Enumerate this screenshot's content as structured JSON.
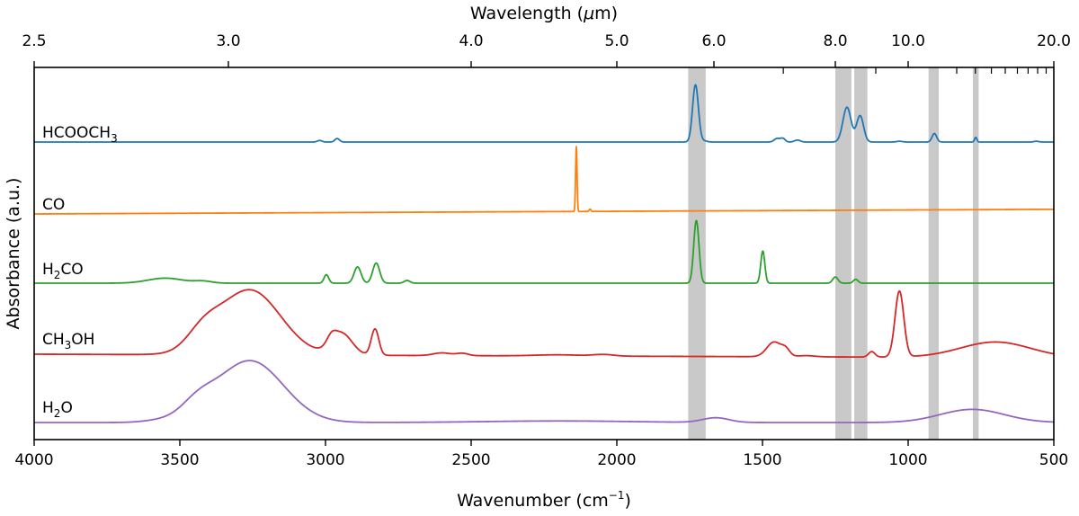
{
  "chart_data": {
    "type": "line",
    "xlabel": "Wavenumber (cm",
    "xlabel_sup": "−1",
    "xlabel_end": ")",
    "x2label": "Wavelength (",
    "x2label_mu": "μ",
    "x2label_end": "m)",
    "ylabel": "Absorbance (a.u.)",
    "xlim": [
      4000,
      500
    ],
    "xticks": [
      "4000",
      "3500",
      "3000",
      "2500",
      "2000",
      "1500",
      "1000",
      "500"
    ],
    "top_ticks": [
      {
        "um": 2.5,
        "label": "2.5"
      },
      {
        "um": 3.0,
        "label": "3.0"
      },
      {
        "um": 4.0,
        "label": "4.0"
      },
      {
        "um": 5.0,
        "label": "5.0"
      },
      {
        "um": 6.0,
        "label": "6.0"
      },
      {
        "um": 8.0,
        "label": "8.0"
      },
      {
        "um": 10.0,
        "label": "10.0"
      },
      {
        "um": 20.0,
        "label": "20.0"
      }
    ],
    "top_minor_ticks_um": [
      7,
      9,
      12,
      13,
      14,
      15,
      16,
      17,
      18,
      19
    ],
    "shaded_bands_cm": [
      [
        1755,
        1695
      ],
      [
        1250,
        1195
      ],
      [
        1185,
        1140
      ],
      [
        930,
        895
      ],
      [
        778,
        758
      ]
    ],
    "series": [
      {
        "name": "HCOOCH3",
        "label_main": "HCOOCH",
        "label_sub": "3",
        "label_tail": "",
        "color": "#1f77b4",
        "baseline": 0.0,
        "tilt": 0.0,
        "peaks": [
          [
            3020,
            0.4,
            8
          ],
          [
            2960,
            0.9,
            8
          ],
          [
            1730,
            14.8,
            10
          ],
          [
            1700,
            0.3,
            10
          ],
          [
            1450,
            0.9,
            10
          ],
          [
            1430,
            0.9,
            8
          ],
          [
            1380,
            0.5,
            10
          ],
          [
            1210,
            9.0,
            14
          ],
          [
            1165,
            6.8,
            12
          ],
          [
            1030,
            0.2,
            10
          ],
          [
            910,
            2.2,
            8
          ],
          [
            768,
            1.2,
            4
          ],
          [
            560,
            0.2,
            8
          ]
        ]
      },
      {
        "name": "CO",
        "label_main": "CO",
        "label_sub": "",
        "label_tail": "",
        "color": "#ff7f0e",
        "baseline": 0.0,
        "tilt": 1.2,
        "peaks": [
          [
            2139,
            16.8,
            2.5
          ],
          [
            2092,
            0.6,
            3
          ]
        ]
      },
      {
        "name": "H2CO",
        "label_main": "H",
        "label_sub": "2",
        "label_tail": "CO",
        "color": "#2ca02c",
        "baseline": 0.0,
        "tilt": 0.0,
        "peaks": [
          [
            3550,
            1.3,
            60
          ],
          [
            3420,
            0.5,
            30
          ],
          [
            2997,
            2.2,
            8
          ],
          [
            2890,
            4.2,
            12
          ],
          [
            2826,
            5.2,
            12
          ],
          [
            2720,
            0.7,
            10
          ],
          [
            1727,
            16.2,
            9
          ],
          [
            1499,
            8.3,
            7
          ],
          [
            1250,
            1.6,
            9
          ],
          [
            1180,
            1.0,
            8
          ]
        ]
      },
      {
        "name": "CH3OH",
        "label_main": "CH",
        "label_sub": "3",
        "label_tail": "OH",
        "color": "#d62728",
        "baseline": 0.0,
        "tilt": -0.9,
        "peaks": [
          [
            3260,
            16.8,
            105
          ],
          [
            3420,
            4.5,
            55
          ],
          [
            2980,
            2.0,
            16
          ],
          [
            2945,
            5.6,
            36
          ],
          [
            2830,
            6.8,
            13
          ],
          [
            2600,
            0.7,
            30
          ],
          [
            2530,
            0.6,
            20
          ],
          [
            2200,
            0.3,
            80
          ],
          [
            2045,
            0.4,
            35
          ],
          [
            1460,
            3.8,
            25
          ],
          [
            1420,
            1.6,
            14
          ],
          [
            1350,
            0.3,
            30
          ],
          [
            1125,
            1.4,
            11
          ],
          [
            1030,
            17.0,
            15
          ],
          [
            700,
            4.0,
            120
          ]
        ]
      },
      {
        "name": "H2O",
        "label_main": "H",
        "label_sub": "2",
        "label_tail": "O",
        "color": "#9467bd",
        "baseline": 0.0,
        "tilt": 0.0,
        "peaks": [
          [
            3260,
            16.0,
            115
          ],
          [
            3440,
            3.5,
            55
          ],
          [
            3560,
            0.5,
            60
          ],
          [
            2200,
            0.4,
            250
          ],
          [
            1660,
            1.2,
            45
          ],
          [
            780,
            3.4,
            110
          ]
        ]
      }
    ]
  }
}
